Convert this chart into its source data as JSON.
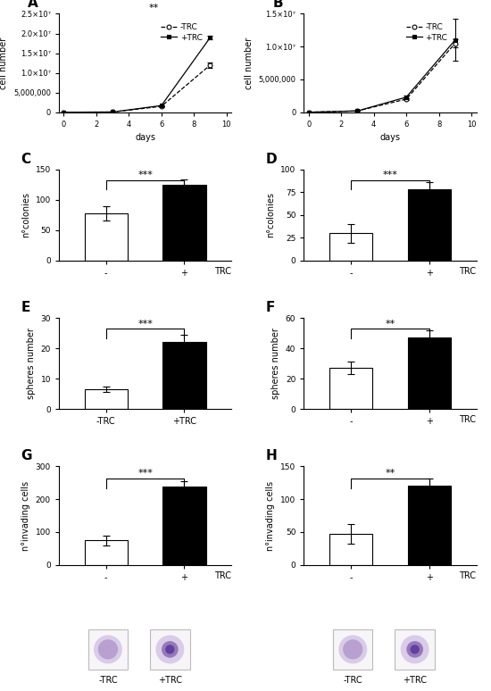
{
  "panel_A": {
    "days": [
      0,
      3,
      6,
      9
    ],
    "minus_trc": [
      0,
      50000,
      1500000,
      12000000
    ],
    "plus_trc": [
      0,
      50000,
      1700000,
      19000000
    ],
    "minus_trc_err": [
      0,
      0,
      100000,
      700000
    ],
    "plus_trc_err": [
      0,
      0,
      100000,
      500000
    ],
    "ylim": [
      0,
      25000000.0
    ],
    "significance": "**",
    "ylabel": "cell number",
    "xlabel": "days"
  },
  "panel_B": {
    "days": [
      0,
      3,
      6,
      9
    ],
    "minus_trc": [
      0,
      200000,
      2000000,
      10500000
    ],
    "plus_trc": [
      0,
      200000,
      2300000,
      11000000
    ],
    "minus_trc_err": [
      0,
      0,
      200000,
      600000
    ],
    "plus_trc_err": [
      0,
      0,
      200000,
      3200000
    ],
    "ylim": [
      0,
      15000000.0
    ],
    "significance": "",
    "ylabel": "cell number",
    "xlabel": "days"
  },
  "panel_C": {
    "minus_trc": 78,
    "plus_trc": 125,
    "minus_trc_err": 12,
    "plus_trc_err": 8,
    "ylim": [
      0,
      150
    ],
    "yticks": [
      0,
      50,
      100,
      150
    ],
    "significance": "***",
    "ylabel": "n°colonies",
    "xlabel": "TRC"
  },
  "panel_D": {
    "minus_trc": 30,
    "plus_trc": 78,
    "minus_trc_err": 10,
    "plus_trc_err": 8,
    "ylim": [
      0,
      100
    ],
    "yticks": [
      0,
      25,
      50,
      75,
      100
    ],
    "significance": "***",
    "ylabel": "n°colonies",
    "xlabel": "TRC"
  },
  "panel_E": {
    "minus_trc": 6.5,
    "plus_trc": 22,
    "minus_trc_err": 0.8,
    "plus_trc_err": 2.5,
    "ylim": [
      0,
      30
    ],
    "yticks": [
      0,
      10,
      20,
      30
    ],
    "significance": "***",
    "ylabel": "spheres number",
    "xlabel": ""
  },
  "panel_F": {
    "minus_trc": 27,
    "plus_trc": 47,
    "minus_trc_err": 4,
    "plus_trc_err": 5,
    "ylim": [
      0,
      60
    ],
    "yticks": [
      0,
      20,
      40,
      60
    ],
    "significance": "**",
    "ylabel": "spheres number",
    "xlabel": "TRC"
  },
  "panel_G": {
    "minus_trc": 75,
    "plus_trc": 238,
    "minus_trc_err": 15,
    "plus_trc_err": 18,
    "ylim": [
      0,
      300
    ],
    "yticks": [
      0,
      100,
      200,
      300
    ],
    "significance": "***",
    "ylabel": "n°invading cells",
    "xlabel": "TRC"
  },
  "panel_H": {
    "minus_trc": 47,
    "plus_trc": 120,
    "minus_trc_err": 15,
    "plus_trc_err": 12,
    "ylim": [
      0,
      150
    ],
    "yticks": [
      0,
      50,
      100,
      150
    ],
    "significance": "**",
    "ylabel": "n°invading cells",
    "xlabel": "TRC"
  },
  "colors": {
    "white_bar": "#ffffff",
    "black_bar": "#000000",
    "background": "#ffffff"
  }
}
